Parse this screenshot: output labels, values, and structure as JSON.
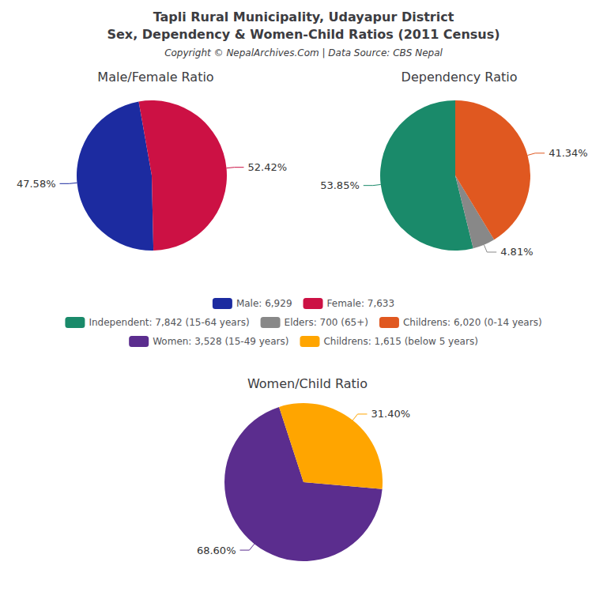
{
  "title": "Tapli Rural Municipality, Udayapur District",
  "subtitle": "Sex, Dependency & Women-Child Ratios (2011 Census)",
  "annotations": [
    "Copyright © NepalArchives.Com | Data Source: CBS Nepal"
  ],
  "chart_data": [
    {
      "type": "pie",
      "title": "Male/Female Ratio",
      "categories": [
        "Male: 6,929",
        "Female: 7,633"
      ],
      "values": [
        47.58,
        52.42
      ],
      "value_labels": [
        "47.58%",
        "52.42%"
      ],
      "colors": [
        "#1C2BA0",
        "#CC1144"
      ],
      "data_labels": true,
      "legend": "center"
    },
    {
      "type": "pie",
      "title": "Dependency Ratio",
      "categories": [
        "Independent: 7,842 (15-64 years)",
        "Elders: 700 (65+)",
        "Childrens: 6,020 (0-14 years)"
      ],
      "values": [
        53.85,
        4.81,
        41.34
      ],
      "value_labels": [
        "53.85%",
        "4.81%",
        "41.34%"
      ],
      "colors": [
        "#1A8A6A",
        "#888888",
        "#E05820"
      ],
      "data_labels": true,
      "legend": "center"
    },
    {
      "type": "pie",
      "title": "Women/Child Ratio",
      "categories": [
        "Women: 3,528 (15-49 years)",
        "Childrens: 1,615 (below 5 years)"
      ],
      "values": [
        68.6,
        31.4
      ],
      "value_labels": [
        "68.60%",
        "31.40%"
      ],
      "colors": [
        "#5B2D8E",
        "#FFA500"
      ],
      "data_labels": true,
      "legend": "center"
    }
  ]
}
